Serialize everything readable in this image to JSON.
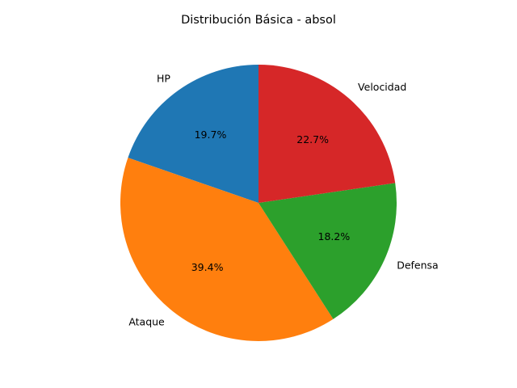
{
  "chart_data": {
    "type": "pie",
    "title": "Distribución Básica - absol",
    "categories": [
      "HP",
      "Ataque",
      "Defensa",
      "Velocidad"
    ],
    "values": [
      19.7,
      39.4,
      18.2,
      22.7
    ],
    "value_labels": [
      "19.7%",
      "39.4%",
      "18.2%",
      "22.7%"
    ],
    "colors": [
      "#1f77b4",
      "#ff7f0e",
      "#2ca02c",
      "#d62728"
    ],
    "start_angle_deg": 90,
    "direction": "counterclockwise",
    "legend": "none"
  }
}
